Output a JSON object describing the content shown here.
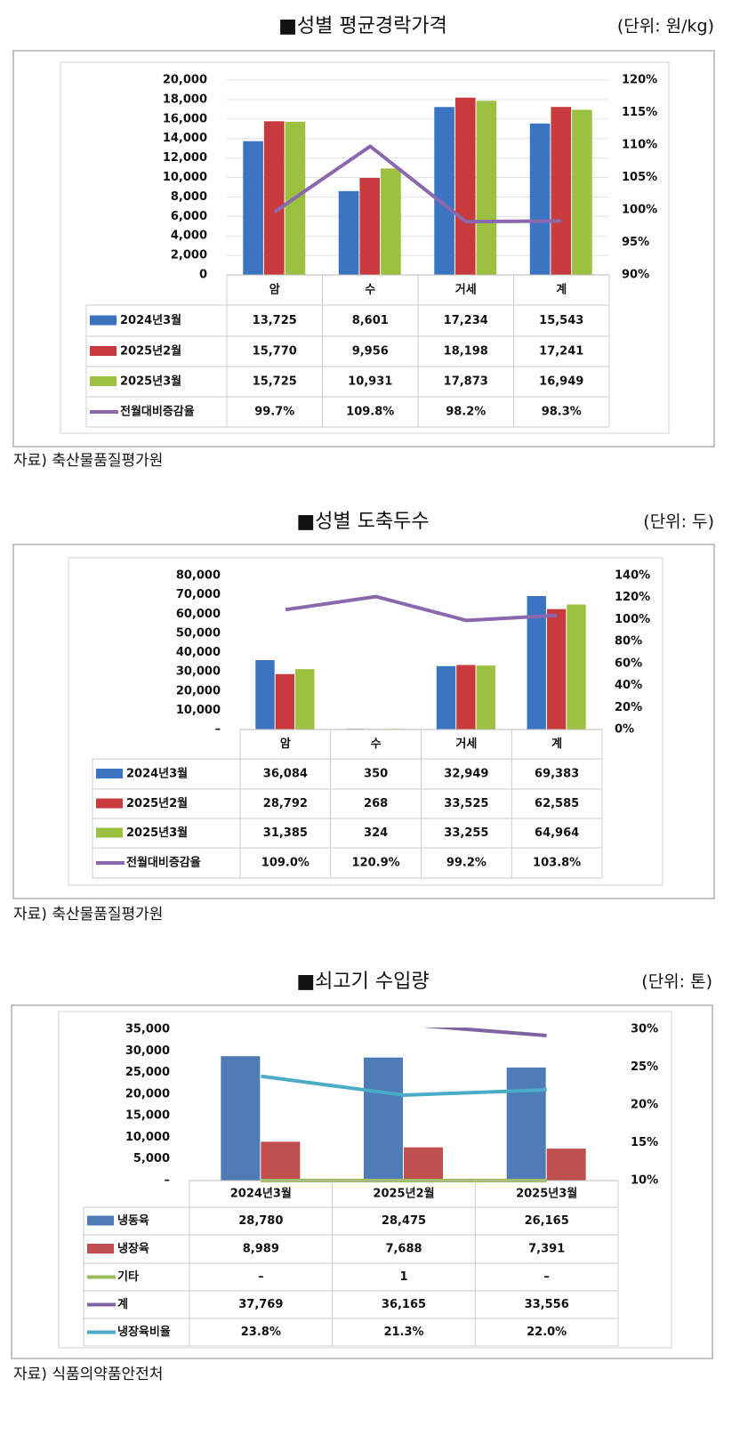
{
  "chart_data": [
    {
      "type": "bar",
      "title": "■성별 평균경락가격",
      "unit": "(단위: 원/kg)",
      "source": "자료) 축산물품질평가원",
      "categories": [
        "암",
        "수",
        "거세",
        "계"
      ],
      "series": [
        {
          "name": "2024년3월",
          "type": "bar",
          "color": "#3b75c2",
          "values": [
            13725,
            8601,
            17234,
            15543
          ],
          "value_labels": [
            "13,725",
            "8,601",
            "17,234",
            "15,543"
          ]
        },
        {
          "name": "2025년2월",
          "type": "bar",
          "color": "#c83a3b",
          "values": [
            15770,
            9956,
            18198,
            17241
          ],
          "value_labels": [
            "15,770",
            "9,956",
            "18,198",
            "17,241"
          ]
        },
        {
          "name": "2025년3월",
          "type": "bar",
          "color": "#9cc03f",
          "values": [
            15725,
            10931,
            17873,
            16949
          ],
          "value_labels": [
            "15,725",
            "10,931",
            "17,873",
            "16,949"
          ]
        },
        {
          "name": "전월대비증감율",
          "type": "line",
          "axis": "y2",
          "color": "#8a68ad",
          "values": [
            99.7,
            109.8,
            98.2,
            98.3
          ],
          "value_labels": [
            "99.7%",
            "109.8%",
            "98.2%",
            "98.3%"
          ]
        }
      ],
      "ylim": [
        0,
        20000
      ],
      "yticks": [
        0,
        {
          "value": 2000,
          "label": "2,000"
        },
        {
          "value": 4000,
          "label": "4,000"
        },
        {
          "value": 6000,
          "label": "6,000"
        },
        {
          "value": 8000,
          "label": "8,000"
        },
        {
          "value": 10000,
          "label": "10,000"
        },
        {
          "value": 12000,
          "label": "12,000"
        },
        {
          "value": 14000,
          "label": "14,000"
        },
        {
          "value": 16000,
          "label": "16,000"
        },
        {
          "value": 18000,
          "label": "18,000"
        },
        {
          "value": 20000,
          "label": "20,000"
        }
      ],
      "y2lim": [
        90,
        120
      ],
      "y2ticks": [
        {
          "value": 90,
          "label": "90%"
        },
        {
          "value": 95,
          "label": "95%"
        },
        {
          "value": 100,
          "label": "100%"
        },
        {
          "value": 105,
          "label": "105%"
        },
        {
          "value": 110,
          "label": "110%"
        },
        {
          "value": 115,
          "label": "115%"
        },
        {
          "value": 120,
          "label": "120%"
        }
      ],
      "grid": true
    },
    {
      "type": "bar",
      "title": "■성별 도축두수",
      "unit": "(단위: 두)",
      "source": "자료) 축산물품질평가원",
      "categories": [
        "암",
        "수",
        "거세",
        "계"
      ],
      "series": [
        {
          "name": "2024년3월",
          "type": "bar",
          "color": "#3b75c2",
          "values": [
            36084,
            350,
            32949,
            69383
          ],
          "value_labels": [
            "36,084",
            "350",
            "32,949",
            "69,383"
          ]
        },
        {
          "name": "2025년2월",
          "type": "bar",
          "color": "#c83a3b",
          "values": [
            28792,
            268,
            33525,
            62585
          ],
          "value_labels": [
            "28,792",
            "268",
            "33,525",
            "62,585"
          ]
        },
        {
          "name": "2025년3월",
          "type": "bar",
          "color": "#9cc03f",
          "values": [
            31385,
            324,
            33255,
            64964
          ],
          "value_labels": [
            "31,385",
            "324",
            "33,255",
            "64,964"
          ]
        },
        {
          "name": "전월대비증감율",
          "type": "line",
          "axis": "y2",
          "color": "#8a68ad",
          "values": [
            109.0,
            120.9,
            99.2,
            103.8
          ],
          "value_labels": [
            "109.0%",
            "120.9%",
            "99.2%",
            "103.8%"
          ]
        }
      ],
      "ylim": [
        0,
        80000
      ],
      "yticks": [
        {
          "value": 0,
          "label": "–"
        },
        {
          "value": 10000,
          "label": "10,000"
        },
        {
          "value": 20000,
          "label": "20,000"
        },
        {
          "value": 30000,
          "label": "30,000"
        },
        {
          "value": 40000,
          "label": "40,000"
        },
        {
          "value": 50000,
          "label": "50,000"
        },
        {
          "value": 60000,
          "label": "60,000"
        },
        {
          "value": 70000,
          "label": "70,000"
        },
        {
          "value": 80000,
          "label": "80,000"
        }
      ],
      "y2lim": [
        0,
        140
      ],
      "y2ticks": [
        {
          "value": 0,
          "label": "0%"
        },
        {
          "value": 20,
          "label": "20%"
        },
        {
          "value": 40,
          "label": "40%"
        },
        {
          "value": 60,
          "label": "60%"
        },
        {
          "value": 80,
          "label": "80%"
        },
        {
          "value": 100,
          "label": "100%"
        },
        {
          "value": 120,
          "label": "120%"
        },
        {
          "value": 140,
          "label": "140%"
        }
      ],
      "grid": false
    },
    {
      "type": "bar",
      "title": "■쇠고기 수입량",
      "unit": "(단위: 톤)",
      "source": "자료) 식품의약품안전처",
      "categories": [
        "2024년3월",
        "2025년2월",
        "2025년3월"
      ],
      "series": [
        {
          "name": "냉동육",
          "type": "bar",
          "color": "#4f7bb6",
          "values": [
            28780,
            28475,
            26165
          ],
          "value_labels": [
            "28,780",
            "28,475",
            "26,165"
          ]
        },
        {
          "name": "냉장육",
          "type": "bar",
          "color": "#c0504d",
          "values": [
            8989,
            7688,
            7391
          ],
          "value_labels": [
            "8,989",
            "7,688",
            "7,391"
          ]
        },
        {
          "name": "기타",
          "type": "line",
          "color": "#9bbb59",
          "values": [
            0,
            1,
            0
          ],
          "value_labels": [
            "–",
            "1",
            "–"
          ]
        },
        {
          "name": "계",
          "type": "line",
          "color": "#8064a2",
          "values": [
            37769,
            36165,
            33556
          ],
          "value_labels": [
            "37,769",
            "36,165",
            "33,556"
          ]
        },
        {
          "name": "냉장육비율",
          "type": "line",
          "axis": "y2",
          "color": "#4bacc6",
          "values": [
            23.8,
            21.3,
            22.0
          ],
          "value_labels": [
            "23.8%",
            "21.3%",
            "22.0%"
          ]
        }
      ],
      "ylim": [
        0,
        35000
      ],
      "yticks": [
        {
          "value": 0,
          "label": "–"
        },
        {
          "value": 5000,
          "label": "5,000"
        },
        {
          "value": 10000,
          "label": "10,000"
        },
        {
          "value": 15000,
          "label": "15,000"
        },
        {
          "value": 20000,
          "label": "20,000"
        },
        {
          "value": 25000,
          "label": "25,000"
        },
        {
          "value": 30000,
          "label": "30,000"
        },
        {
          "value": 35000,
          "label": "35,000"
        }
      ],
      "y2lim": [
        10,
        30
      ],
      "y2ticks": [
        {
          "value": 10,
          "label": "10%"
        },
        {
          "value": 15,
          "label": "15%"
        },
        {
          "value": 20,
          "label": "20%"
        },
        {
          "value": 25,
          "label": "25%"
        },
        {
          "value": 30,
          "label": "30%"
        }
      ],
      "grid": false
    }
  ]
}
